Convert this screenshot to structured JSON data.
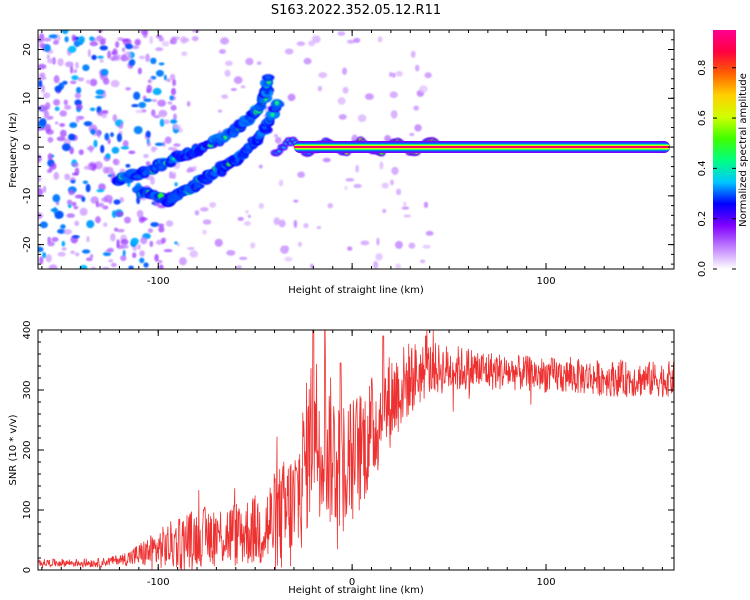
{
  "title": "S163.2022.352.05.12.R11",
  "chart_data": [
    {
      "type": "heatmap",
      "xlabel": "Height of straight line (km)",
      "ylabel": "Frequency (Hz)",
      "xlim": [
        -162,
        166
      ],
      "ylim": [
        -25,
        24
      ],
      "x_ticks": [
        -100,
        0,
        100
      ],
      "x_tick_labels": [
        "-100",
        "",
        "100"
      ],
      "y_ticks": [
        -20,
        -10,
        0,
        10,
        20
      ],
      "y_tick_labels": [
        "-20",
        "-10",
        "0",
        "10",
        "20"
      ],
      "colorbar": {
        "label": "Normalized spectral amplitude",
        "range": [
          0,
          0.95
        ],
        "ticks": [
          0,
          0.2,
          0.4,
          0.6,
          0.8
        ],
        "tick_labels": [
          "0.0",
          "0.2",
          "0.4",
          "0.6",
          "0.8"
        ],
        "colors": [
          "#ffffff",
          "#c080ff",
          "#8000ff",
          "#0000ff",
          "#00c8ff",
          "#00ff80",
          "#40ff00",
          "#d0ff00",
          "#ffd000",
          "#ff6000",
          "#ff0040",
          "#ff0090"
        ]
      },
      "features": {
        "carrier_line": {
          "x_start": -30,
          "x_end": 164,
          "frequency": 0,
          "amplitude_center": 0.9
        },
        "upper_branch": [
          [
            -122,
            -7
          ],
          [
            -105,
            -5
          ],
          [
            -90,
            -2
          ],
          [
            -75,
            0
          ],
          [
            -62,
            3
          ],
          [
            -52,
            6
          ],
          [
            -45,
            10
          ],
          [
            -43,
            14
          ]
        ],
        "lower_branch": [
          [
            -110,
            -9
          ],
          [
            -95,
            -11
          ],
          [
            -85,
            -9
          ],
          [
            -75,
            -6
          ],
          [
            -65,
            -4
          ],
          [
            -55,
            -1
          ],
          [
            -45,
            4
          ],
          [
            -38,
            9
          ]
        ],
        "noise_region_x": [
          -162,
          -110
        ],
        "grid": false
      }
    },
    {
      "type": "line",
      "xlabel": "Height of straight line (km)",
      "ylabel": "SNR (10 * v/v)",
      "xlim": [
        -162,
        166
      ],
      "ylim": [
        0,
        400
      ],
      "x_ticks": [
        -100,
        0,
        100
      ],
      "x_tick_labels": [
        "-100",
        "0",
        "100"
      ],
      "y_ticks": [
        0,
        100,
        200,
        300,
        400
      ],
      "y_tick_labels": [
        "0",
        "100",
        "200",
        "300",
        "400"
      ],
      "color": "#ee3030",
      "grid": false,
      "envelope": [
        [
          -162,
          12
        ],
        [
          -130,
          12
        ],
        [
          -115,
          20
        ],
        [
          -100,
          35
        ],
        [
          -80,
          55
        ],
        [
          -60,
          60
        ],
        [
          -45,
          70
        ],
        [
          -30,
          100
        ],
        [
          -24,
          180
        ],
        [
          -20,
          240
        ],
        [
          -12,
          200
        ],
        [
          -5,
          175
        ],
        [
          0,
          180
        ],
        [
          10,
          230
        ],
        [
          20,
          285
        ],
        [
          30,
          320
        ],
        [
          40,
          335
        ],
        [
          60,
          335
        ],
        [
          100,
          325
        ],
        [
          140,
          318
        ],
        [
          166,
          318
        ]
      ],
      "noise_amplitude": [
        [
          -162,
          6
        ],
        [
          -120,
          8
        ],
        [
          -90,
          45
        ],
        [
          -50,
          60
        ],
        [
          -30,
          110
        ],
        [
          -20,
          140
        ],
        [
          0,
          110
        ],
        [
          20,
          80
        ],
        [
          40,
          45
        ],
        [
          80,
          30
        ],
        [
          166,
          30
        ]
      ],
      "peaks": [
        [
          -20,
          400
        ],
        [
          -14,
          400
        ],
        [
          -6,
          345
        ],
        [
          16,
          390
        ],
        [
          38,
          390
        ]
      ]
    }
  ]
}
